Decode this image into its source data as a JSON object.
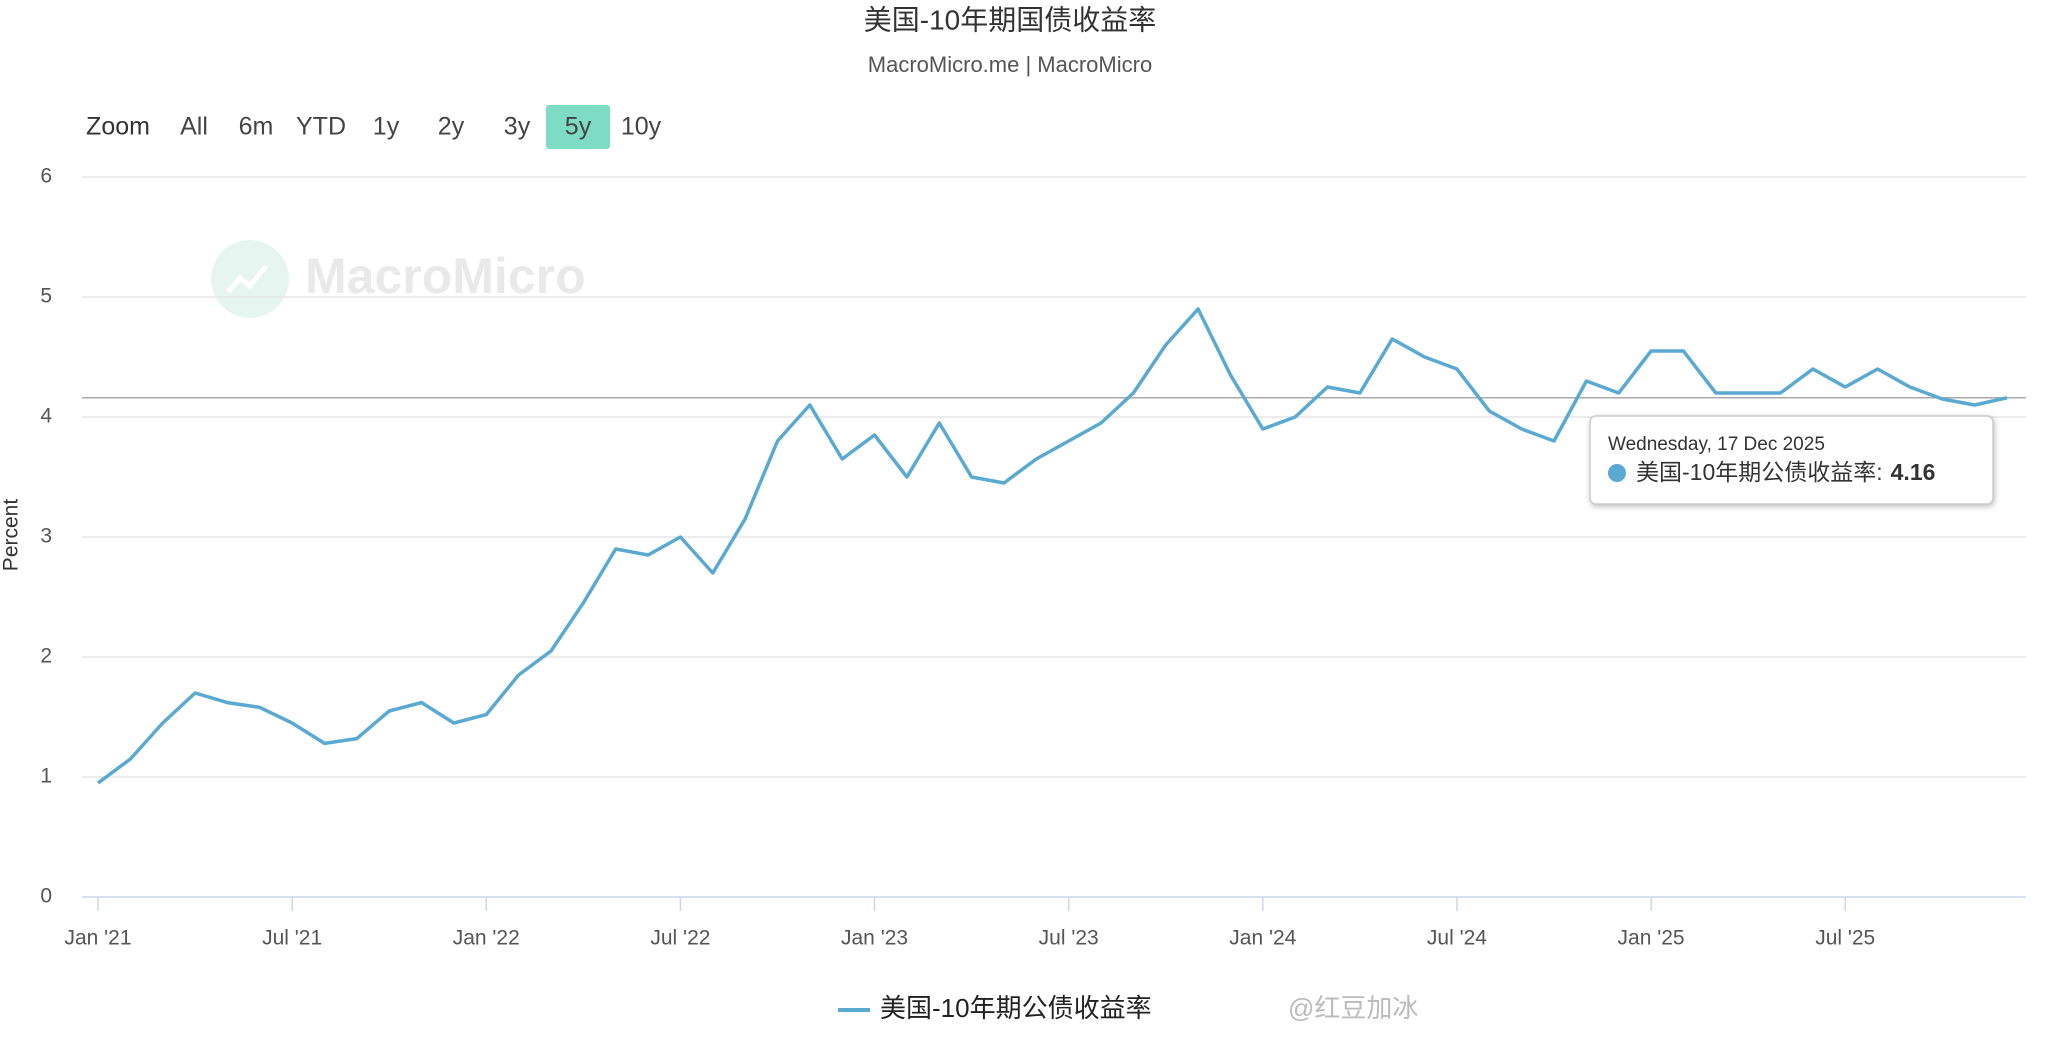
{
  "chart_data": {
    "type": "line",
    "title": "美国-10年期国债收益率",
    "subtitle": "MacroMicro.me | MacroMicro",
    "watermark": "MacroMicro",
    "y_label": "Percent",
    "range_selector": {
      "label": "Zoom",
      "buttons": [
        "All",
        "6m",
        "YTD",
        "1y",
        "2y",
        "3y",
        "5y",
        "10y"
      ],
      "selected": "5y"
    },
    "x": [
      "2021-01",
      "2021-02",
      "2021-03",
      "2021-04",
      "2021-05",
      "2021-06",
      "2021-07",
      "2021-08",
      "2021-09",
      "2021-10",
      "2021-11",
      "2021-12",
      "2022-01",
      "2022-02",
      "2022-03",
      "2022-04",
      "2022-05",
      "2022-06",
      "2022-07",
      "2022-08",
      "2022-09",
      "2022-10",
      "2022-11",
      "2022-12",
      "2023-01",
      "2023-02",
      "2023-03",
      "2023-04",
      "2023-05",
      "2023-06",
      "2023-07",
      "2023-08",
      "2023-09",
      "2023-10",
      "2023-11",
      "2023-12",
      "2024-01",
      "2024-02",
      "2024-03",
      "2024-04",
      "2024-05",
      "2024-06",
      "2024-07",
      "2024-08",
      "2024-09",
      "2024-10",
      "2024-11",
      "2024-12",
      "2025-01",
      "2025-02",
      "2025-03",
      "2025-04",
      "2025-05",
      "2025-06",
      "2025-07",
      "2025-08",
      "2025-09",
      "2025-10",
      "2025-11",
      "2025-12"
    ],
    "series": [
      {
        "name": "美国-10年期公债收益率",
        "color": "#5aa9d1",
        "values": [
          0.95,
          1.15,
          1.45,
          1.7,
          1.62,
          1.58,
          1.45,
          1.28,
          1.32,
          1.55,
          1.62,
          1.45,
          1.52,
          1.85,
          2.05,
          2.45,
          2.9,
          2.85,
          3.0,
          2.7,
          3.15,
          3.8,
          4.1,
          3.65,
          3.85,
          3.5,
          3.95,
          3.5,
          3.45,
          3.65,
          3.8,
          3.95,
          4.2,
          4.6,
          4.9,
          4.35,
          3.9,
          4.0,
          4.25,
          4.2,
          4.65,
          4.5,
          4.4,
          4.05,
          3.9,
          3.8,
          4.3,
          4.2,
          4.55,
          4.55,
          4.2,
          4.2,
          4.2,
          4.4,
          4.25,
          4.4,
          4.25,
          4.15,
          4.1,
          4.16
        ]
      }
    ],
    "xlim": [
      "2021-01",
      "2025-12"
    ],
    "xticks": [
      {
        "value": "2021-01",
        "label": "Jan '21"
      },
      {
        "value": "2021-07",
        "label": "Jul '21"
      },
      {
        "value": "2022-01",
        "label": "Jan '22"
      },
      {
        "value": "2022-07",
        "label": "Jul '22"
      },
      {
        "value": "2023-01",
        "label": "Jan '23"
      },
      {
        "value": "2023-07",
        "label": "Jul '23"
      },
      {
        "value": "2024-01",
        "label": "Jan '24"
      },
      {
        "value": "2024-07",
        "label": "Jul '24"
      },
      {
        "value": "2025-01",
        "label": "Jan '25"
      },
      {
        "value": "2025-07",
        "label": "Jul '25"
      }
    ],
    "ylim": [
      0,
      6
    ],
    "yticks": [
      0,
      1,
      2,
      3,
      4,
      5,
      6
    ],
    "grid": true,
    "legend": "bottom",
    "tooltip": {
      "date": "Wednesday, 17 Dec 2025",
      "label": "美国-10年期公债收益率:",
      "value": 4.16
    },
    "credit": "@红豆加冰"
  }
}
